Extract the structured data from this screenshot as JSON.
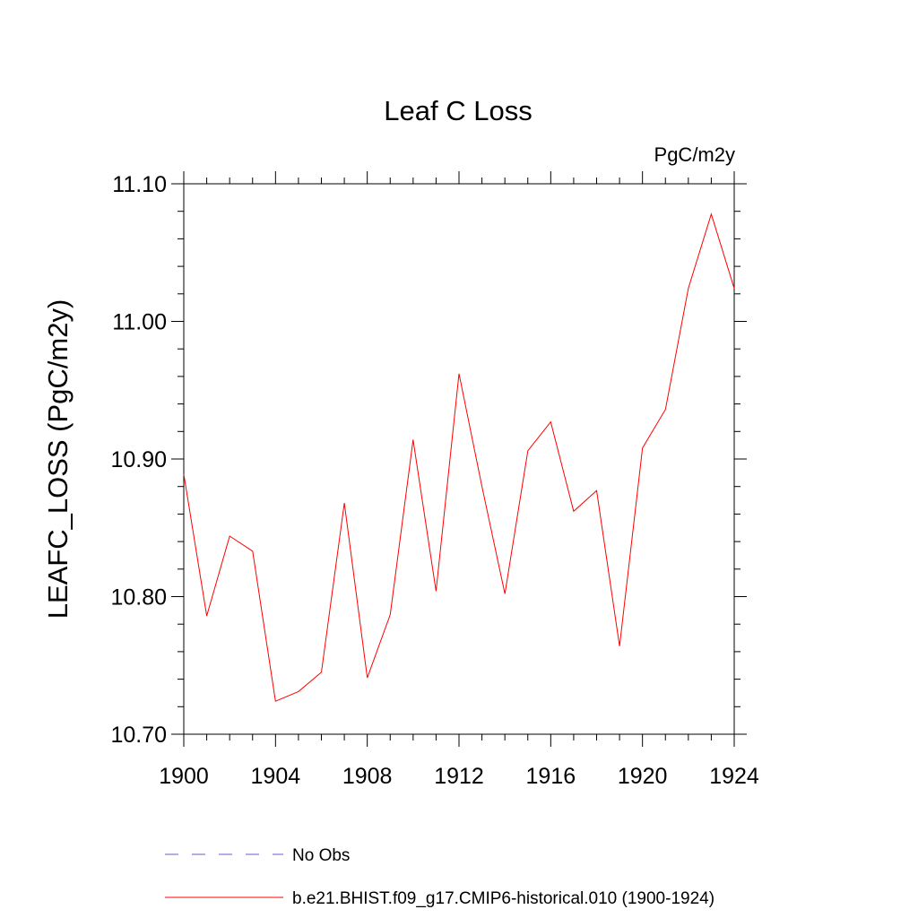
{
  "chart_data": {
    "type": "line",
    "title": "Leaf C Loss",
    "units_label": "PgC/m2y",
    "ylabel": "LEAFC_LOSS  (PgC/m2y)",
    "xlabel": "",
    "xlim": [
      1900,
      1924
    ],
    "ylim": [
      10.7,
      11.1
    ],
    "x_ticks": [
      1900,
      1904,
      1908,
      1912,
      1916,
      1920,
      1924
    ],
    "x_tick_labels": [
      "1900",
      "1904",
      "1908",
      "1912",
      "1916",
      "1920",
      "1924"
    ],
    "y_ticks": [
      10.7,
      10.8,
      10.9,
      11.0,
      11.1
    ],
    "y_tick_labels": [
      "10.70",
      "10.80",
      "10.90",
      "11.00",
      "11.10"
    ],
    "x": [
      1900,
      1901,
      1902,
      1903,
      1904,
      1905,
      1906,
      1907,
      1908,
      1909,
      1910,
      1911,
      1912,
      1913,
      1914,
      1915,
      1916,
      1917,
      1918,
      1919,
      1920,
      1921,
      1922,
      1923,
      1924
    ],
    "series": [
      {
        "name": "b.e21.BHIST.f09_g17.CMIP6-historical.010 (1900-1924)",
        "color": "#ff0000",
        "style": "solid",
        "values": [
          10.889,
          10.786,
          10.844,
          10.833,
          10.724,
          10.731,
          10.745,
          10.868,
          10.741,
          10.787,
          10.914,
          10.804,
          10.962,
          10.88,
          10.802,
          10.906,
          10.927,
          10.862,
          10.877,
          10.764,
          10.908,
          10.936,
          11.024,
          11.078,
          11.024
        ]
      }
    ],
    "legend": {
      "placement": "bottom",
      "entries": [
        {
          "label": "No Obs",
          "color": "#6a5acd",
          "style": "dashed"
        },
        {
          "label": "b.e21.BHIST.f09_g17.CMIP6-historical.010 (1900-1924)",
          "color": "#ff0000",
          "style": "solid"
        }
      ]
    }
  }
}
